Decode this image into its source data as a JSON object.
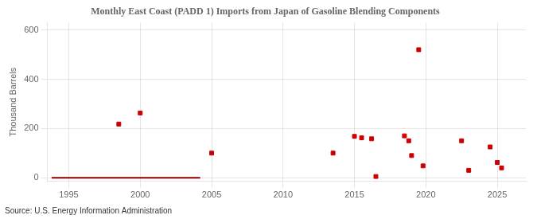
{
  "chart_data": {
    "type": "scatter",
    "title": "Monthly East Coast (PADD 1) Imports from Japan of Gasoline Blending Components",
    "ylabel": "Thousand Barrels",
    "annotation": "Source: U.S. Energy Information Administration",
    "xlim": [
      1993.5,
      2027.0
    ],
    "ylim": [
      -15,
      630
    ],
    "xticks": [
      1995,
      2000,
      2005,
      2010,
      2015,
      2020,
      2025
    ],
    "yticks": [
      0,
      200,
      400,
      600
    ],
    "grid": true,
    "series": [
      {
        "type": "line",
        "color": "#8b0000",
        "x": [
          1993.8,
          2004.2
        ],
        "values": [
          0,
          0
        ]
      },
      {
        "type": "scatter",
        "color": "#cc0000",
        "marker": "square",
        "x": [
          1998.5,
          2000.0,
          2005.0,
          2013.5,
          2015.0,
          2015.5,
          2016.2,
          2016.5,
          2018.5,
          2018.8,
          2019.0,
          2019.5,
          2019.8,
          2022.5,
          2023.0,
          2024.5,
          2025.0,
          2025.3
        ],
        "values": [
          218,
          263,
          100,
          100,
          168,
          162,
          158,
          5,
          170,
          150,
          90,
          520,
          48,
          150,
          30,
          125,
          62,
          40
        ]
      }
    ]
  }
}
